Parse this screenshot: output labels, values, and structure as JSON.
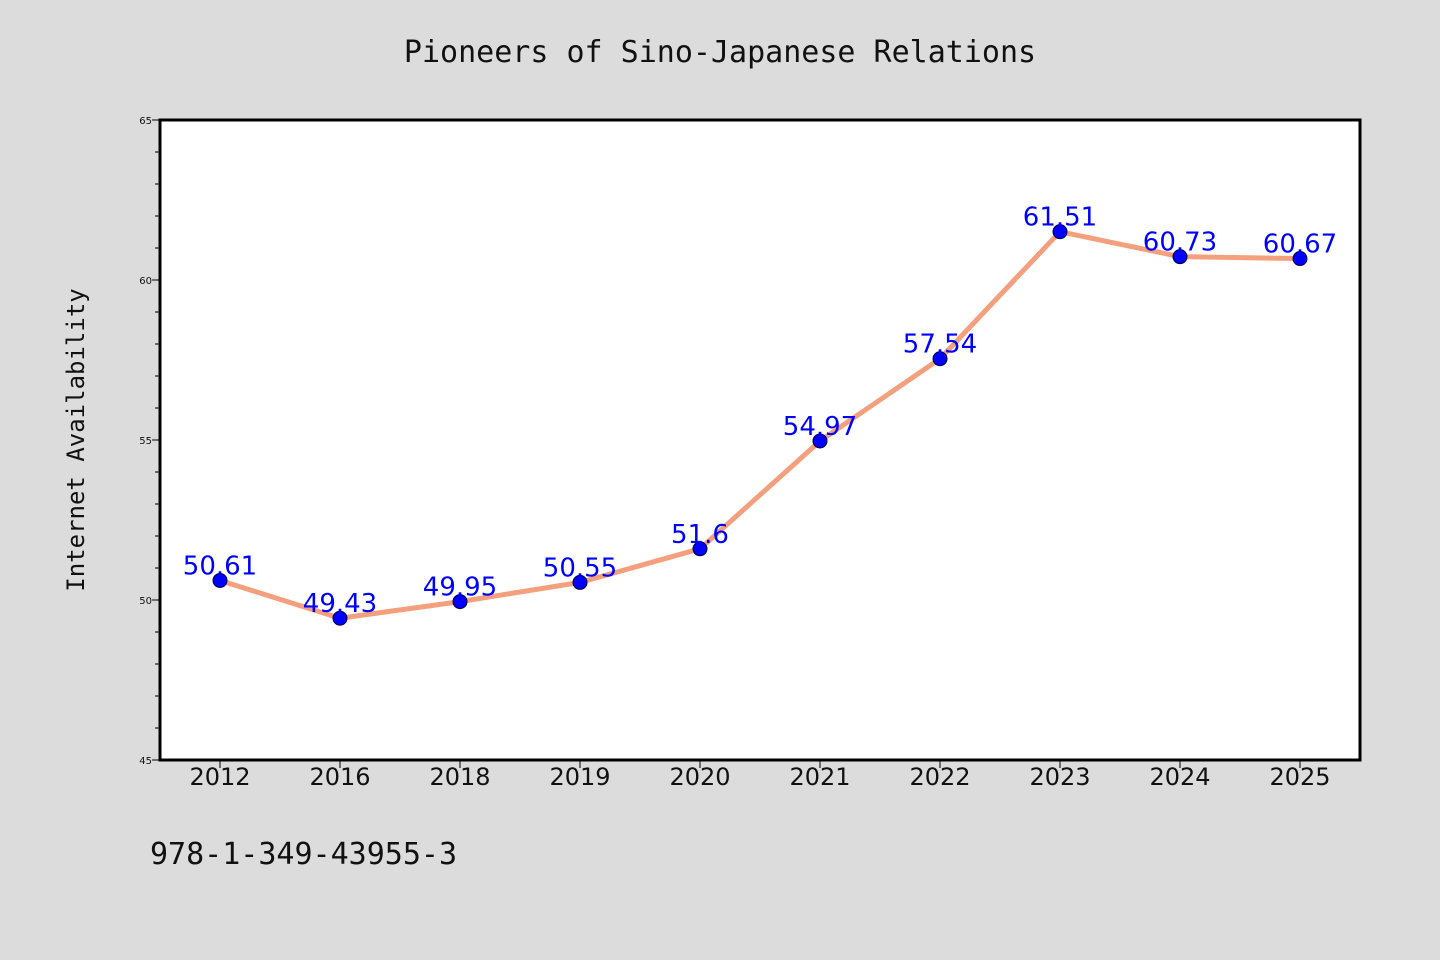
{
  "chart_data": {
    "type": "line",
    "title": "Pioneers of Sino-Japanese Relations",
    "xlabel": "",
    "ylabel": "Internet Availability",
    "categories": [
      "2012",
      "2016",
      "2018",
      "2019",
      "2020",
      "2021",
      "2022",
      "2023",
      "2024",
      "2025"
    ],
    "series": [
      {
        "values": [
          50.61,
          49.43,
          49.95,
          50.55,
          51.6,
          54.97,
          57.54,
          61.51,
          60.73,
          60.67
        ],
        "data_labels": [
          "50.61",
          "49.43",
          "49.95",
          "50.55",
          "51.6",
          "54.97",
          "57.54",
          "61.51",
          "60.73",
          "60.67"
        ],
        "line_color": "#f4a07e",
        "marker_color": "#0000ff",
        "label_color": "#0000ff"
      }
    ],
    "ylim": [
      45,
      65
    ],
    "y_major_ticks": [
      45,
      50,
      55,
      60,
      65
    ],
    "y_minor_step": 1,
    "grid": false,
    "legend": "none"
  },
  "footer": {
    "text": "978-1-349-43955-3"
  },
  "colors": {
    "background": "#dcdcdc",
    "plot_background": "#ffffff",
    "axes": "#000000"
  }
}
